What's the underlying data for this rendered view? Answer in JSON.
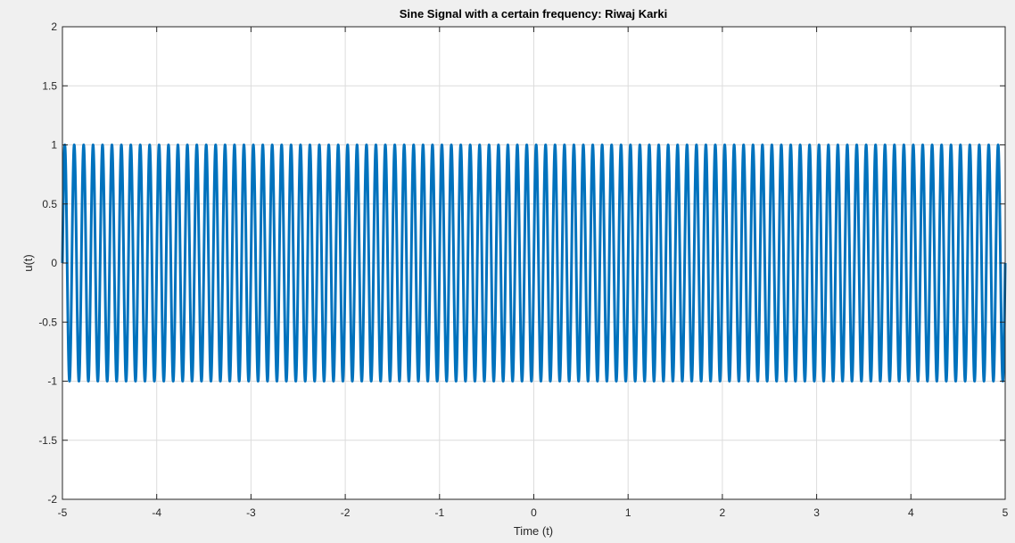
{
  "chart_data": {
    "type": "line",
    "title": "Sine Signal with a certain frequency: Riwaj Karki",
    "xlabel": "Time (t)",
    "ylabel": "u(t)",
    "xlim": [
      -5,
      5
    ],
    "ylim": [
      -2,
      2
    ],
    "xticks": [
      -5,
      -4,
      -3,
      -2,
      -1,
      0,
      1,
      2,
      3,
      4,
      5
    ],
    "xtick_labels": [
      "-5",
      "-4",
      "-3",
      "-2",
      "-1",
      "0",
      "1",
      "2",
      "3",
      "4",
      "5"
    ],
    "yticks": [
      -2,
      -1.5,
      -1,
      -0.5,
      0,
      0.5,
      1,
      1.5,
      2
    ],
    "ytick_labels": [
      "-2",
      "-1.5",
      "-1",
      "-0.5",
      "0",
      "0.5",
      "1",
      "1.5",
      "2"
    ],
    "grid": true,
    "series": [
      {
        "function": "sin",
        "amplitude": 1,
        "frequency": 10,
        "x_range": [
          -5,
          5
        ],
        "color": "#0072BD"
      }
    ]
  },
  "colors": {
    "figure_background": "#f0f0f0",
    "axes_background": "#ffffff",
    "grid": "#dcdcdc",
    "axis": "#262626",
    "line": "#0072BD"
  }
}
